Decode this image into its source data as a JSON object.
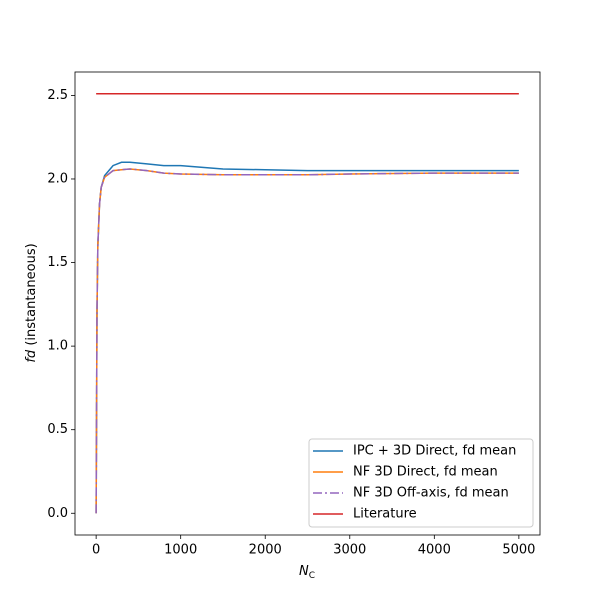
{
  "chart_data": {
    "type": "line",
    "xlabel": {
      "main": "N",
      "sub": "C"
    },
    "ylabel": {
      "italic": "fd",
      "rest": "(instantaneous)"
    },
    "x": [
      0,
      10,
      20,
      40,
      60,
      100,
      150,
      200,
      300,
      400,
      600,
      800,
      1000,
      1500,
      2000,
      2500,
      3000,
      4000,
      5000
    ],
    "series": [
      {
        "name": "IPC + 3D Direct, fd mean",
        "color": "#1f77b4",
        "dash": "solid",
        "values": [
          0,
          1.2,
          1.6,
          1.85,
          1.95,
          2.02,
          2.05,
          2.08,
          2.1,
          2.1,
          2.09,
          2.08,
          2.08,
          2.06,
          2.055,
          2.05,
          2.05,
          2.05,
          2.05
        ]
      },
      {
        "name": "NF 3D Direct, fd mean",
        "color": "#ff7f0e",
        "dash": "solid",
        "values": [
          0,
          1.2,
          1.6,
          1.85,
          1.95,
          2.01,
          2.03,
          2.05,
          2.055,
          2.06,
          2.05,
          2.035,
          2.03,
          2.025,
          2.025,
          2.025,
          2.03,
          2.035,
          2.035
        ]
      },
      {
        "name": "NF 3D Off-axis, fd mean",
        "color": "#9467bd",
        "dash": "dashdot",
        "values": [
          0,
          1.2,
          1.6,
          1.85,
          1.95,
          2.01,
          2.03,
          2.05,
          2.055,
          2.06,
          2.05,
          2.035,
          2.03,
          2.025,
          2.025,
          2.025,
          2.03,
          2.035,
          2.035
        ]
      },
      {
        "name": "Literature",
        "color": "#d62728",
        "dash": "solid",
        "values": [
          2.51,
          2.51,
          2.51,
          2.51,
          2.51,
          2.51,
          2.51,
          2.51,
          2.51,
          2.51,
          2.51,
          2.51,
          2.51,
          2.51,
          2.51,
          2.51,
          2.51,
          2.51,
          2.51
        ]
      }
    ],
    "xlim": [
      -250,
      5250
    ],
    "ylim": [
      -0.13,
      2.64
    ],
    "xticks": [
      0,
      1000,
      2000,
      3000,
      4000,
      5000
    ],
    "yticks": [
      {
        "value": 0,
        "label": "0.0"
      },
      0.5,
      {
        "value": 1,
        "label": "1.0"
      },
      1.5,
      {
        "value": 2,
        "label": "2.0"
      },
      2.5
    ],
    "legend": "lower right",
    "grid": false
  }
}
